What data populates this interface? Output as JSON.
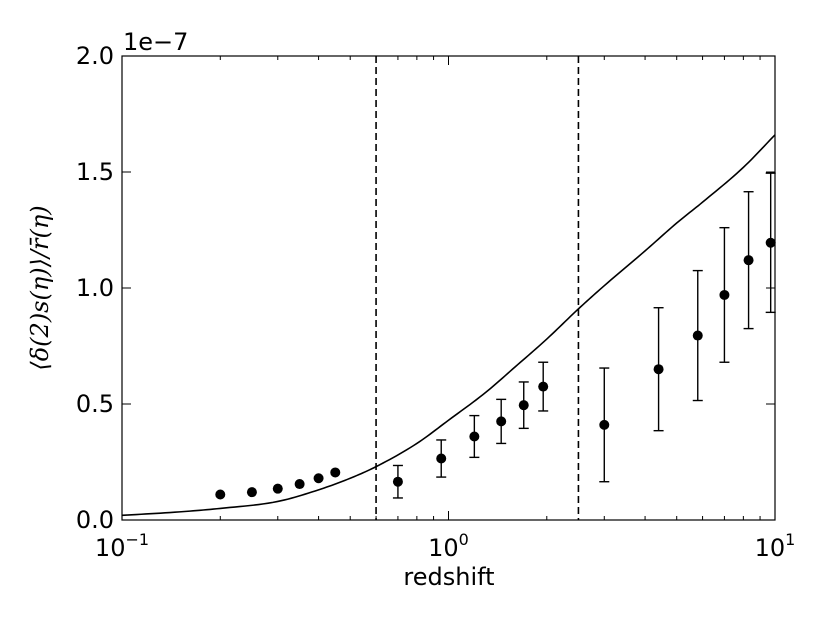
{
  "chart_data": {
    "type": "scatter",
    "xlabel": "redshift",
    "ylabel": "⟨δ(2)s(η)⟩/r̄(η)",
    "xscale": "log",
    "xlim": [
      0.1,
      10
    ],
    "ylim": [
      0,
      2.0
    ],
    "y_multiplier_label": "1e−7",
    "x_ticks": [
      {
        "base": "10",
        "exp": "−1",
        "value": 0.1
      },
      {
        "base": "10",
        "exp": "0",
        "value": 1
      },
      {
        "base": "10",
        "exp": "1",
        "value": 10
      }
    ],
    "y_ticks": [
      {
        "label": "0.0",
        "value": 0.0
      },
      {
        "label": "0.5",
        "value": 0.5
      },
      {
        "label": "1.0",
        "value": 1.0
      },
      {
        "label": "1.5",
        "value": 1.5
      },
      {
        "label": "2.0",
        "value": 2.0
      }
    ],
    "vertical_lines": [
      0.6,
      2.5
    ],
    "curve": {
      "style": "solid",
      "x": [
        0.1,
        0.15,
        0.2,
        0.3,
        0.4,
        0.5,
        0.6,
        0.8,
        1.0,
        1.3,
        1.6,
        2.0,
        2.5,
        3.0,
        4.0,
        5.0,
        6.0,
        8.0,
        10.0
      ],
      "y": [
        0.02,
        0.035,
        0.05,
        0.08,
        0.13,
        0.18,
        0.23,
        0.33,
        0.43,
        0.55,
        0.66,
        0.78,
        0.91,
        1.01,
        1.16,
        1.28,
        1.37,
        1.52,
        1.66
      ]
    },
    "points": [
      {
        "x": 0.2,
        "y": 0.11,
        "err": 0
      },
      {
        "x": 0.25,
        "y": 0.12,
        "err": 0
      },
      {
        "x": 0.3,
        "y": 0.135,
        "err": 0
      },
      {
        "x": 0.35,
        "y": 0.155,
        "err": 0
      },
      {
        "x": 0.4,
        "y": 0.18,
        "err": 0
      },
      {
        "x": 0.45,
        "y": 0.205,
        "err": 0
      },
      {
        "x": 0.7,
        "y": 0.165,
        "err": 0.07
      },
      {
        "x": 0.95,
        "y": 0.265,
        "err": 0.08
      },
      {
        "x": 1.2,
        "y": 0.36,
        "err": 0.09
      },
      {
        "x": 1.45,
        "y": 0.425,
        "err": 0.095
      },
      {
        "x": 1.7,
        "y": 0.495,
        "err": 0.1
      },
      {
        "x": 1.95,
        "y": 0.575,
        "err": 0.105
      },
      {
        "x": 3.0,
        "y": 0.41,
        "err": 0.245
      },
      {
        "x": 4.4,
        "y": 0.65,
        "err": 0.265
      },
      {
        "x": 5.8,
        "y": 0.795,
        "err": 0.28
      },
      {
        "x": 7.0,
        "y": 0.97,
        "err": 0.29
      },
      {
        "x": 8.3,
        "y": 1.12,
        "err": 0.295
      },
      {
        "x": 9.7,
        "y": 1.195,
        "err": 0.3
      }
    ]
  }
}
